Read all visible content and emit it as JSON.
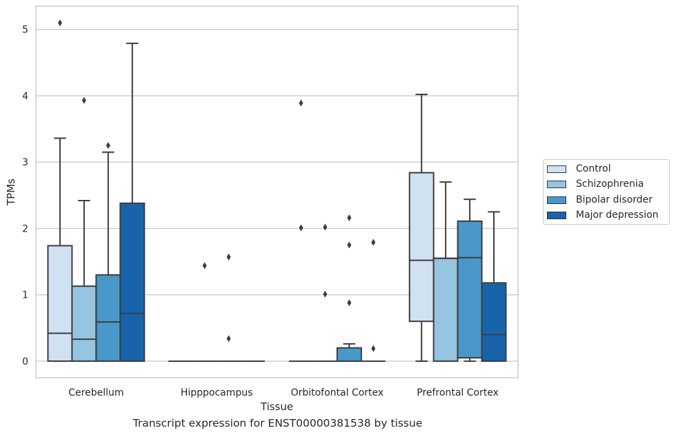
{
  "caption": "Transcript expression for ENST00000381538 by tissue",
  "legend": {
    "items": [
      {
        "label": "Control",
        "color": "#d0e1f2"
      },
      {
        "label": "Schizophrenia",
        "color": "#94c4df"
      },
      {
        "label": "Bipolar disorder",
        "color": "#4a98c9"
      },
      {
        "label": "Major depression",
        "color": "#1764ab"
      }
    ]
  },
  "chart_data": {
    "type": "box",
    "xlabel": "Tissue",
    "ylabel": "TPMs",
    "ylim": [
      -0.25,
      5.35
    ],
    "yticks": [
      0,
      1,
      2,
      3,
      4,
      5
    ],
    "grid": "horizontal",
    "legend_position": "right",
    "categories": [
      "Cerebellum",
      "Hipppocampus",
      "Orbitofontal Cortex",
      "Prefrontal Cortex"
    ],
    "series": [
      {
        "name": "Control",
        "color": "#d0e1f2",
        "boxes": [
          {
            "whislo": 0,
            "q1": 0,
            "med": 0.42,
            "q3": 1.74,
            "whishi": 3.36,
            "fliers": [
              5.1
            ]
          },
          {
            "whislo": 0,
            "q1": 0,
            "med": 0,
            "q3": 0,
            "whishi": 0,
            "fliers": []
          },
          {
            "whislo": 0,
            "q1": 0,
            "med": 0,
            "q3": 0,
            "whishi": 0,
            "fliers": [
              3.89,
              2.01
            ]
          },
          {
            "whislo": 0,
            "q1": 0.6,
            "med": 1.52,
            "q3": 2.84,
            "whishi": 4.02,
            "fliers": []
          }
        ]
      },
      {
        "name": "Schizophrenia",
        "color": "#94c4df",
        "boxes": [
          {
            "whislo": 0,
            "q1": 0,
            "med": 0.33,
            "q3": 1.13,
            "whishi": 2.42,
            "fliers": [
              3.93
            ]
          },
          {
            "whislo": 0,
            "q1": 0,
            "med": 0,
            "q3": 0,
            "whishi": 0,
            "fliers": [
              1.44
            ]
          },
          {
            "whislo": 0,
            "q1": 0,
            "med": 0,
            "q3": 0,
            "whishi": 0,
            "fliers": [
              2.02,
              1.01
            ]
          },
          {
            "whislo": 0,
            "q1": 0,
            "med": 1.55,
            "q3": 1.55,
            "whishi": 2.7,
            "fliers": []
          }
        ]
      },
      {
        "name": "Bipolar disorder",
        "color": "#4a98c9",
        "boxes": [
          {
            "whislo": 0,
            "q1": 0,
            "med": 0.59,
            "q3": 1.3,
            "whishi": 3.15,
            "fliers": [
              3.25
            ]
          },
          {
            "whislo": 0,
            "q1": 0,
            "med": 0,
            "q3": 0,
            "whishi": 0,
            "fliers": [
              1.57,
              0.34
            ]
          },
          {
            "whislo": 0,
            "q1": 0,
            "med": 0,
            "q3": 0.2,
            "whishi": 0.26,
            "fliers": [
              2.16,
              1.75,
              0.88
            ]
          },
          {
            "whislo": 0,
            "q1": 0.05,
            "med": 1.56,
            "q3": 2.11,
            "whishi": 2.44,
            "fliers": []
          }
        ]
      },
      {
        "name": "Major depression",
        "color": "#1764ab",
        "boxes": [
          {
            "whislo": 0,
            "q1": 0,
            "med": 0.72,
            "q3": 2.38,
            "whishi": 4.79,
            "fliers": []
          },
          {
            "whislo": 0,
            "q1": 0,
            "med": 0,
            "q3": 0,
            "whishi": 0,
            "fliers": []
          },
          {
            "whislo": 0,
            "q1": 0,
            "med": 0,
            "q3": 0,
            "whishi": 0,
            "fliers": [
              1.79,
              0.19
            ]
          },
          {
            "whislo": 0,
            "q1": 0,
            "med": 0.4,
            "q3": 1.18,
            "whishi": 2.25,
            "fliers": []
          }
        ]
      }
    ]
  }
}
